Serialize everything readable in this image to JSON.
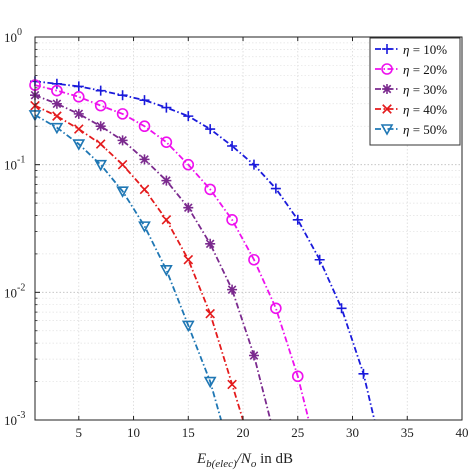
{
  "chart_data": {
    "type": "line",
    "title": "",
    "xlabel": {
      "main": "E",
      "main_sub": "b(elec)",
      "sep": "/N",
      "sep_sub": "o",
      "suffix": " in dB"
    },
    "ylabel": "",
    "x_range": [
      1,
      40
    ],
    "y_range": [
      0.001,
      1
    ],
    "y_scale": "log",
    "x_ticks": [
      5,
      10,
      15,
      20,
      25,
      30,
      35,
      40
    ],
    "y_ticks": [
      {
        "value": 1,
        "base": "10",
        "exp": "0"
      },
      {
        "value": 0.1,
        "base": "10",
        "exp": "-1"
      },
      {
        "value": 0.01,
        "base": "10",
        "exp": "-2"
      },
      {
        "value": 0.001,
        "base": "10",
        "exp": "-3"
      }
    ],
    "grid": true,
    "legend_position": "top-right",
    "series": [
      {
        "name": "η = 10%",
        "label_symbol": "η",
        "label_value": " = 10%",
        "color": "#1a1adb",
        "marker": "plus",
        "x": [
          1,
          3,
          5,
          7,
          9,
          11,
          13,
          15,
          17,
          19,
          21,
          23,
          25,
          27,
          29,
          31,
          32
        ],
        "y": [
          0.45,
          0.43,
          0.41,
          0.38,
          0.35,
          0.32,
          0.28,
          0.24,
          0.19,
          0.14,
          0.1,
          0.065,
          0.037,
          0.018,
          0.0075,
          0.0023,
          0.001
        ]
      },
      {
        "name": "η = 20%",
        "label_symbol": "η",
        "label_value": " = 20%",
        "color": "#ee11ee",
        "marker": "circle",
        "x": [
          1,
          3,
          5,
          7,
          9,
          11,
          13,
          15,
          17,
          19,
          21,
          23,
          25,
          26
        ],
        "y": [
          0.42,
          0.38,
          0.34,
          0.29,
          0.25,
          0.2,
          0.15,
          0.1,
          0.064,
          0.037,
          0.018,
          0.0075,
          0.0022,
          0.001
        ]
      },
      {
        "name": "η = 30%",
        "label_symbol": "η",
        "label_value": " = 30%",
        "color": "#7b2a8e",
        "marker": "star",
        "x": [
          1,
          3,
          5,
          7,
          9,
          11,
          13,
          15,
          17,
          19,
          21,
          22.5
        ],
        "y": [
          0.35,
          0.3,
          0.25,
          0.2,
          0.155,
          0.11,
          0.075,
          0.046,
          0.024,
          0.0105,
          0.0032,
          0.001
        ]
      },
      {
        "name": "η = 40%",
        "label_symbol": "η",
        "label_value": " = 40%",
        "color": "#e41a1c",
        "marker": "x",
        "x": [
          1,
          3,
          5,
          7,
          9,
          11,
          13,
          15,
          17,
          19,
          20
        ],
        "y": [
          0.29,
          0.24,
          0.19,
          0.145,
          0.1,
          0.064,
          0.037,
          0.018,
          0.0068,
          0.0019,
          0.001
        ]
      },
      {
        "name": "η = 50%",
        "label_symbol": "η",
        "label_value": " = 50%",
        "color": "#1f77b4",
        "marker": "triangle-down",
        "x": [
          1,
          3,
          5,
          7,
          9,
          11,
          13,
          15,
          17,
          18
        ],
        "y": [
          0.245,
          0.195,
          0.145,
          0.1,
          0.062,
          0.033,
          0.015,
          0.0055,
          0.002,
          0.001
        ]
      }
    ]
  }
}
